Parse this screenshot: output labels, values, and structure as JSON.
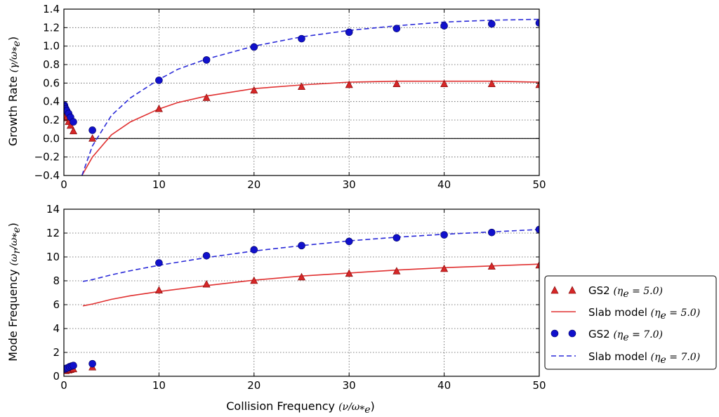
{
  "colors": {
    "red": "#d62728",
    "red_line": "#e03030",
    "blue": "#1010cc",
    "blue_line": "#2a2ad8"
  },
  "axes": {
    "top_ylabel": {
      "prefix": "Growth Rate ",
      "math": "(γ/ω",
      "sub": "*e",
      "suffix": ")"
    },
    "bottom_ylabel": {
      "prefix": "Mode Frequency ",
      "math": "(ω",
      "sub1": "r",
      "math2": "/ω",
      "sub2": "*e",
      "suffix": ")"
    },
    "xlabel": {
      "prefix": "Collision Frequency ",
      "math": "(ν/ω",
      "sub": "*e",
      "suffix": ")"
    }
  },
  "legend": [
    {
      "label": "GS2 ",
      "math": "(η",
      "sub": "e",
      "eq": " = 5.0)",
      "style": "red-triangle"
    },
    {
      "label": "Slab model ",
      "math": "(η",
      "sub": "e",
      "eq": " = 5.0)",
      "style": "red-solid"
    },
    {
      "label": "GS2 ",
      "math": "(η",
      "sub": "e",
      "eq": " = 7.0)",
      "style": "blue-circle"
    },
    {
      "label": "Slab model ",
      "math": "(η",
      "sub": "e",
      "eq": " = 7.0)",
      "style": "blue-dashed"
    }
  ],
  "chart_data": [
    {
      "type": "line",
      "panel": "top",
      "xlim": [
        0,
        50
      ],
      "ylim": [
        -0.4,
        1.4
      ],
      "xticks": [
        0,
        10,
        20,
        30,
        40,
        50
      ],
      "yticks": [
        -0.4,
        -0.2,
        0.0,
        0.2,
        0.4,
        0.6,
        0.8,
        1.0,
        1.2,
        1.4
      ],
      "ytick_labels": [
        "−0.4",
        "−0.2",
        "0.0",
        "0.2",
        "0.4",
        "0.6",
        "0.8",
        "1.0",
        "1.2",
        "1.4"
      ],
      "grid": true,
      "zero_line": true,
      "series": [
        {
          "name": "GS2 (η_e = 5.0)",
          "kind": "triangle",
          "color": "#d62728",
          "points": [
            [
              0.05,
              0.28
            ],
            [
              0.1,
              0.26
            ],
            [
              0.2,
              0.24
            ],
            [
              0.3,
              0.22
            ],
            [
              0.5,
              0.18
            ],
            [
              0.7,
              0.14
            ],
            [
              1.0,
              0.08
            ],
            [
              3,
              0.0
            ],
            [
              10,
              0.32
            ],
            [
              15,
              0.44
            ],
            [
              20,
              0.52
            ],
            [
              25,
              0.56
            ],
            [
              30,
              0.58
            ],
            [
              35,
              0.59
            ],
            [
              40,
              0.59
            ],
            [
              45,
              0.59
            ],
            [
              50,
              0.58
            ]
          ]
        },
        {
          "name": "Slab model (η_e = 5.0)",
          "kind": "solid",
          "color": "#e03030",
          "points": [
            [
              1.9,
              -0.4
            ],
            [
              3,
              -0.2
            ],
            [
              5,
              0.04
            ],
            [
              7,
              0.18
            ],
            [
              10,
              0.32
            ],
            [
              12,
              0.39
            ],
            [
              15,
              0.46
            ],
            [
              20,
              0.54
            ],
            [
              25,
              0.58
            ],
            [
              30,
              0.61
            ],
            [
              35,
              0.62
            ],
            [
              40,
              0.62
            ],
            [
              45,
              0.62
            ],
            [
              50,
              0.61
            ]
          ]
        },
        {
          "name": "GS2 (η_e = 7.0)",
          "kind": "circle",
          "color": "#1010cc",
          "points": [
            [
              0.05,
              0.36
            ],
            [
              0.1,
              0.34
            ],
            [
              0.2,
              0.32
            ],
            [
              0.3,
              0.3
            ],
            [
              0.5,
              0.27
            ],
            [
              0.7,
              0.23
            ],
            [
              1.0,
              0.18
            ],
            [
              3,
              0.09
            ],
            [
              10,
              0.63
            ],
            [
              15,
              0.85
            ],
            [
              20,
              0.99
            ],
            [
              25,
              1.08
            ],
            [
              30,
              1.15
            ],
            [
              35,
              1.19
            ],
            [
              40,
              1.22
            ],
            [
              45,
              1.24
            ],
            [
              50,
              1.25
            ]
          ]
        },
        {
          "name": "Slab model (η_e = 7.0)",
          "kind": "dashed",
          "color": "#2a2ad8",
          "points": [
            [
              1.9,
              -0.4
            ],
            [
              3,
              -0.08
            ],
            [
              5,
              0.25
            ],
            [
              7,
              0.44
            ],
            [
              10,
              0.64
            ],
            [
              12,
              0.75
            ],
            [
              15,
              0.86
            ],
            [
              20,
              1.0
            ],
            [
              25,
              1.1
            ],
            [
              30,
              1.17
            ],
            [
              35,
              1.22
            ],
            [
              40,
              1.26
            ],
            [
              45,
              1.28
            ],
            [
              50,
              1.29
            ]
          ]
        }
      ]
    },
    {
      "type": "line",
      "panel": "bottom",
      "xlim": [
        0,
        50
      ],
      "ylim": [
        0,
        14
      ],
      "xticks": [
        0,
        10,
        20,
        30,
        40,
        50
      ],
      "yticks": [
        0,
        2,
        4,
        6,
        8,
        10,
        12,
        14
      ],
      "ytick_labels": [
        "0",
        "2",
        "4",
        "6",
        "8",
        "10",
        "12",
        "14"
      ],
      "grid": true,
      "series": [
        {
          "name": "GS2 (η_e = 5.0)",
          "kind": "triangle",
          "color": "#d62728",
          "points": [
            [
              0.2,
              0.45
            ],
            [
              0.5,
              0.5
            ],
            [
              0.7,
              0.55
            ],
            [
              1.0,
              0.6
            ],
            [
              3,
              0.75
            ],
            [
              10,
              7.2
            ],
            [
              15,
              7.7
            ],
            [
              20,
              8.0
            ],
            [
              25,
              8.3
            ],
            [
              30,
              8.6
            ],
            [
              35,
              8.8
            ],
            [
              40,
              9.0
            ],
            [
              45,
              9.2
            ],
            [
              50,
              9.3
            ]
          ]
        },
        {
          "name": "Slab model (η_e = 5.0)",
          "kind": "solid",
          "color": "#e03030",
          "points": [
            [
              2,
              5.9
            ],
            [
              3,
              6.05
            ],
            [
              5,
              6.45
            ],
            [
              7,
              6.75
            ],
            [
              10,
              7.1
            ],
            [
              15,
              7.6
            ],
            [
              20,
              8.05
            ],
            [
              25,
              8.4
            ],
            [
              30,
              8.65
            ],
            [
              35,
              8.9
            ],
            [
              40,
              9.1
            ],
            [
              45,
              9.25
            ],
            [
              50,
              9.4
            ]
          ]
        },
        {
          "name": "GS2 (η_e = 7.0)",
          "kind": "circle",
          "color": "#1010cc",
          "points": [
            [
              0.1,
              0.6
            ],
            [
              0.2,
              0.65
            ],
            [
              0.4,
              0.7
            ],
            [
              0.6,
              0.8
            ],
            [
              0.8,
              0.85
            ],
            [
              1.0,
              0.9
            ],
            [
              3,
              1.05
            ],
            [
              10,
              9.5
            ],
            [
              15,
              10.1
            ],
            [
              20,
              10.6
            ],
            [
              25,
              10.95
            ],
            [
              30,
              11.3
            ],
            [
              35,
              11.6
            ],
            [
              40,
              11.85
            ],
            [
              45,
              12.05
            ],
            [
              50,
              12.3
            ]
          ]
        },
        {
          "name": "Slab model (η_e = 7.0)",
          "kind": "dashed",
          "color": "#2a2ad8",
          "points": [
            [
              2,
              7.95
            ],
            [
              3,
              8.1
            ],
            [
              5,
              8.5
            ],
            [
              7,
              8.85
            ],
            [
              10,
              9.3
            ],
            [
              15,
              9.95
            ],
            [
              20,
              10.5
            ],
            [
              25,
              10.95
            ],
            [
              30,
              11.35
            ],
            [
              35,
              11.65
            ],
            [
              40,
              11.9
            ],
            [
              45,
              12.1
            ],
            [
              50,
              12.3
            ]
          ]
        }
      ]
    }
  ]
}
